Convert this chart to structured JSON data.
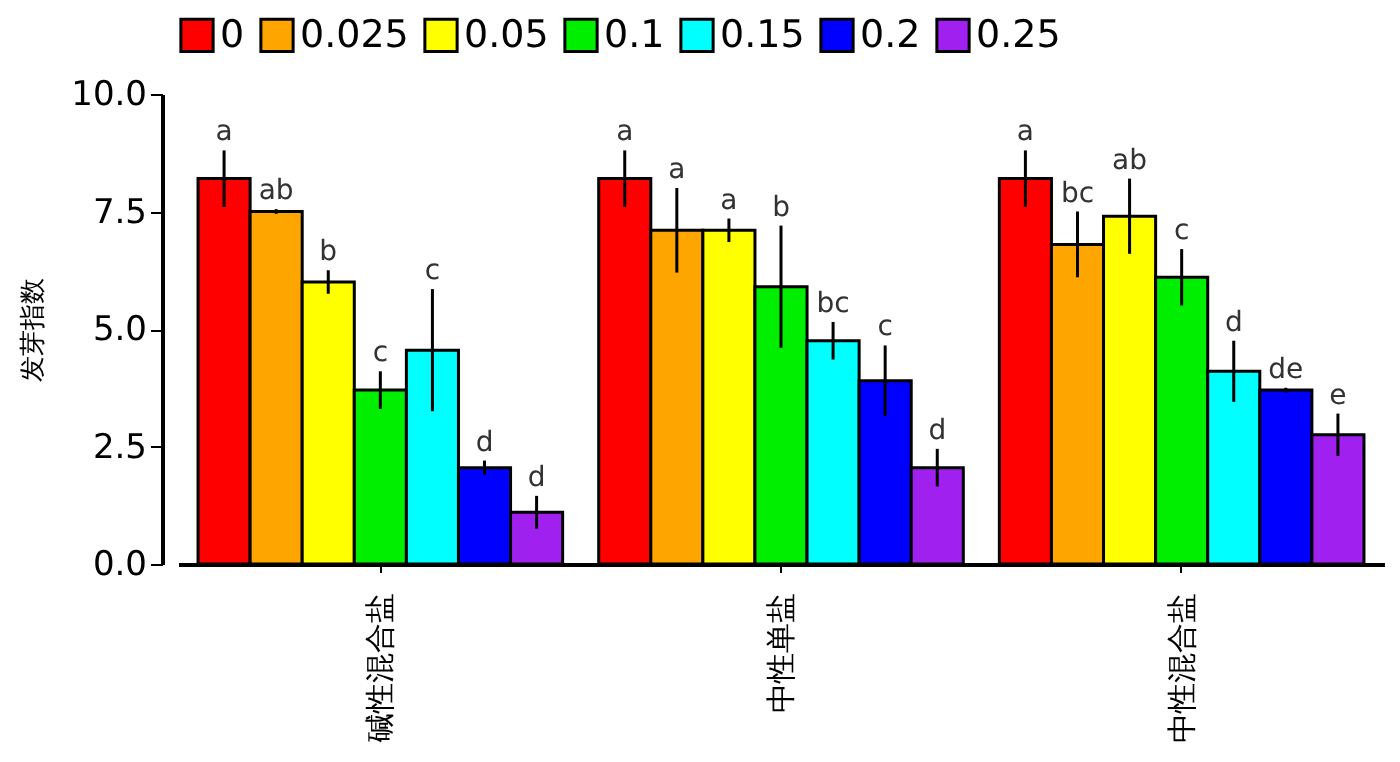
{
  "chart_data": {
    "type": "bar",
    "ylabel": "发芽指数",
    "categories": [
      "碱性混合盐",
      "中性单盐",
      "中性混合盐"
    ],
    "ylim": [
      0,
      10
    ],
    "yticks": [
      {
        "value": 0,
        "label": "0.0"
      },
      {
        "value": 2.5,
        "label": "2.5"
      },
      {
        "value": 5,
        "label": "5.0"
      },
      {
        "value": 7.5,
        "label": "7.5"
      },
      {
        "value": 10,
        "label": "10.0"
      }
    ],
    "legend": "top",
    "series": [
      {
        "name": "0",
        "color": "#ff0000",
        "values": [
          8.2,
          8.2,
          8.2
        ],
        "errors": [
          0.6,
          0.6,
          0.6
        ],
        "value_labels": [
          "a",
          "a",
          "a"
        ]
      },
      {
        "name": "0.025",
        "color": "#ffa500",
        "values": [
          7.5,
          7.1,
          6.8
        ],
        "errors": [
          0.05,
          0.9,
          0.7
        ],
        "value_labels": [
          "ab",
          "a",
          "bc"
        ]
      },
      {
        "name": "0.05",
        "color": "#ffff00",
        "values": [
          6.0,
          7.1,
          7.4
        ],
        "errors": [
          0.25,
          0.25,
          0.8
        ],
        "value_labels": [
          "b",
          "a",
          "ab"
        ]
      },
      {
        "name": "0.1",
        "color": "#00ee00",
        "values": [
          3.7,
          5.9,
          6.1
        ],
        "errors": [
          0.4,
          1.3,
          0.6
        ],
        "value_labels": [
          "c",
          "b",
          "c"
        ]
      },
      {
        "name": "0.15",
        "color": "#00ffff",
        "values": [
          4.55,
          4.75,
          4.1
        ],
        "errors": [
          1.3,
          0.4,
          0.65
        ],
        "value_labels": [
          "c",
          "bc",
          "d"
        ]
      },
      {
        "name": "0.2",
        "color": "#0000ff",
        "values": [
          2.05,
          3.9,
          3.7
        ],
        "errors": [
          0.15,
          0.75,
          0.05
        ],
        "value_labels": [
          "d",
          "c",
          "de"
        ]
      },
      {
        "name": "0.25",
        "color": "#a020f0",
        "values": [
          1.1,
          2.05,
          2.75
        ],
        "errors": [
          0.35,
          0.4,
          0.45
        ],
        "value_labels": [
          "d",
          "d",
          "e"
        ]
      }
    ]
  }
}
